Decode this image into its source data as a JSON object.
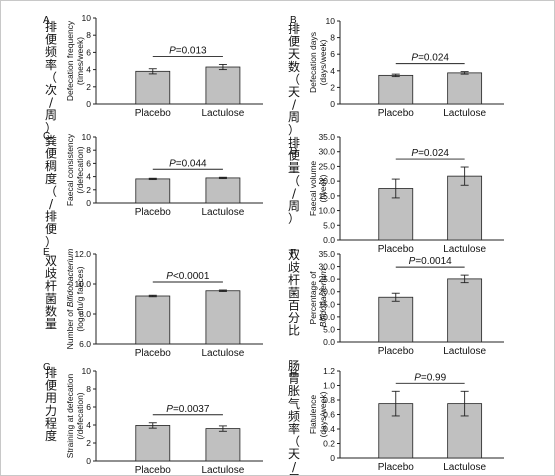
{
  "chart_data": [
    {
      "type": "bar",
      "panel": "A",
      "cn_label": "排便频率（次/周）",
      "ylabel": [
        "Defecation frequency",
        "(times/week)"
      ],
      "categories": [
        "Placebo",
        "Lactulose"
      ],
      "values": [
        3.8,
        4.3
      ],
      "errors": [
        0.3,
        0.3
      ],
      "ylim": [
        0,
        10
      ],
      "yticks": [
        0,
        2,
        4,
        6,
        8,
        10
      ],
      "tick_labels": [
        "0",
        "2",
        "4",
        "6",
        "8",
        "10"
      ],
      "p_value": "=0.013",
      "colors": {
        "bar": "#c0c0c0"
      }
    },
    {
      "type": "bar",
      "panel": "B",
      "cn_label": "排便天数（天/周）",
      "ylabel": [
        "Defecation days",
        "(days/week)"
      ],
      "categories": [
        "Placebo",
        "Lactulose"
      ],
      "values": [
        3.45,
        3.75
      ],
      "errors": [
        0.15,
        0.15
      ],
      "ylim": [
        0,
        10
      ],
      "yticks": [
        0,
        2,
        4,
        6,
        8,
        10
      ],
      "tick_labels": [
        "0",
        "2",
        "4",
        "6",
        "8",
        "10"
      ],
      "p_value": "=0.024",
      "colors": {
        "bar": "#c0c0c0"
      }
    },
    {
      "type": "bar",
      "panel": "C",
      "cn_label": "粪便稠度（/排便）",
      "ylabel": [
        "Faecal consistency",
        "(/defecation)"
      ],
      "categories": [
        "Placebo",
        "Lactulose"
      ],
      "values": [
        3.65,
        3.8
      ],
      "errors": [
        0.1,
        0.1
      ],
      "ylim": [
        0,
        10
      ],
      "yticks": [
        0,
        2,
        4,
        6,
        8,
        10
      ],
      "tick_labels": [
        "0",
        "2",
        "4",
        "6",
        "8",
        "10"
      ],
      "p_value": "=0.044",
      "colors": {
        "bar": "#c0c0c0"
      }
    },
    {
      "type": "bar",
      "panel": "D",
      "cn_label": "排便量（/周）",
      "ylabel": [
        "Faecal volume",
        "(/week)"
      ],
      "categories": [
        "Placebo",
        "Lactulose"
      ],
      "values": [
        17.5,
        21.7
      ],
      "errors": [
        3.2,
        3.1
      ],
      "ylim": [
        0,
        35
      ],
      "yticks": [
        0,
        5,
        10,
        15,
        20,
        25,
        30,
        35
      ],
      "tick_labels": [
        "0.0",
        "5.0",
        "10.0",
        "15.0",
        "20.0",
        "25.0",
        "30.0",
        "35.0"
      ],
      "p_value": "=0.024",
      "colors": {
        "bar": "#c0c0c0"
      }
    },
    {
      "type": "bar",
      "panel": "E",
      "cn_label": "双歧杆菌数量",
      "ylabel": [
        "Number of Bifidobacterium",
        "(log cfu/g faeces)"
      ],
      "categories": [
        "Placebo",
        "Lactulose"
      ],
      "values": [
        9.2,
        9.55
      ],
      "errors": [
        0.05,
        0.05
      ],
      "ylim": [
        6,
        12
      ],
      "yticks": [
        6,
        8,
        10,
        12
      ],
      "tick_labels": [
        "6.0",
        "8.0",
        "10.0",
        "12.0"
      ],
      "p_value": "<0.0001",
      "colors": {
        "bar": "#c0c0c0"
      }
    },
    {
      "type": "bar",
      "panel": "F",
      "cn_label": "双歧杆菌百分比",
      "ylabel": [
        "Percentage of",
        "Bifidobacterium"
      ],
      "categories": [
        "Placebo",
        "Lactulose"
      ],
      "values": [
        17.8,
        25.1
      ],
      "errors": [
        1.6,
        1.5
      ],
      "ylim": [
        0,
        35
      ],
      "yticks": [
        0,
        5,
        10,
        15,
        20,
        25,
        30,
        35
      ],
      "tick_labels": [
        "0.0",
        "5.0",
        "10.0",
        "15.0",
        "20.0",
        "25.0",
        "30.0",
        "35.0"
      ],
      "p_value": "=0.0014",
      "colors": {
        "bar": "#c0c0c0"
      }
    },
    {
      "type": "bar",
      "panel": "G",
      "cn_label": "排便用力程度",
      "ylabel": [
        "Straining at defecation",
        "(/defecation)"
      ],
      "categories": [
        "Placebo",
        "Lactulose"
      ],
      "values": [
        3.95,
        3.6
      ],
      "errors": [
        0.3,
        0.3
      ],
      "ylim": [
        0,
        10
      ],
      "yticks": [
        0,
        2,
        4,
        6,
        8,
        10
      ],
      "tick_labels": [
        "0",
        "2",
        "4",
        "6",
        "8",
        "10"
      ],
      "p_value": "=0.0037",
      "colors": {
        "bar": "#c0c0c0"
      }
    },
    {
      "type": "bar",
      "panel": "H",
      "cn_label": "肠胃胀气频率（天/周）",
      "ylabel": [
        "Flatulence",
        "(days/week)"
      ],
      "categories": [
        "Placebo",
        "Lactulose"
      ],
      "values": [
        0.75,
        0.75
      ],
      "errors": [
        0.17,
        0.17
      ],
      "ylim": [
        0,
        1.2
      ],
      "yticks": [
        0,
        0.2,
        0.4,
        0.6,
        0.8,
        1.0,
        1.2
      ],
      "tick_labels": [
        "0",
        "0.2",
        "0.4",
        "0.6",
        "0.8",
        "1.0",
        "1.2"
      ],
      "p_value": "=0.99",
      "colors": {
        "bar": "#c0c0c0"
      }
    }
  ]
}
